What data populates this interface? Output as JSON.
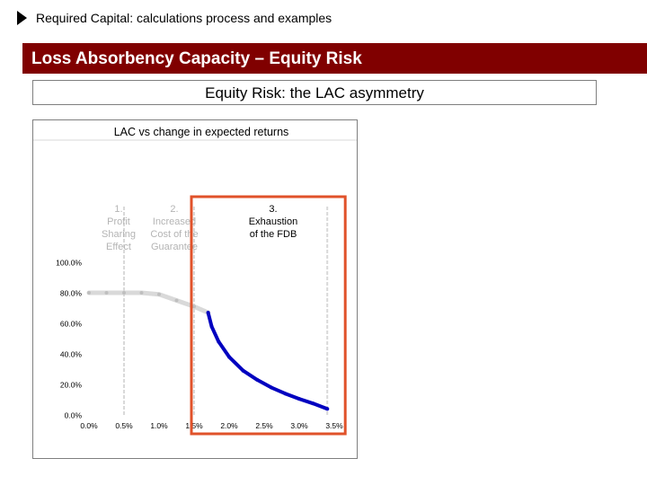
{
  "header": {
    "title": "Required Capital: calculations process and examples"
  },
  "banner": {
    "title": "Loss Absorbency Capacity – Equity Risk"
  },
  "subtitle_box": {
    "title": "Equity Risk: the LAC asymmetry"
  },
  "colors": {
    "banner": "#800000",
    "curve_light": "#d9d9d9",
    "curve_dark": "#0000c0",
    "highlight": "#e0522a",
    "gridline": "#d9d9d9"
  },
  "chart_data": {
    "type": "line",
    "title": "LAC vs change in expected returns",
    "xlabel": "",
    "ylabel": "",
    "x_ticks": [
      "0.0%",
      "0.5%",
      "1.0%",
      "1.5%",
      "2.0%",
      "2.5%",
      "3.0%",
      "3.5%"
    ],
    "y_ticks": [
      "0.0%",
      "20.0%",
      "40.0%",
      "60.0%",
      "80.0%",
      "100.0%"
    ],
    "xlim": [
      0,
      3.5
    ],
    "ylim": [
      0,
      100
    ],
    "zones": [
      {
        "lines": [
          "1.",
          "Profit",
          "Sharing",
          "Effect"
        ],
        "boundary_x": 0.5,
        "faded": true
      },
      {
        "lines": [
          "2.",
          "Increased",
          "Cost of the",
          "Guarantee"
        ],
        "boundary_x": 1.5,
        "faded": true
      },
      {
        "lines": [
          "3.",
          "Exhaustion",
          "of the FDB"
        ],
        "boundary_x": 3.4,
        "faded": false
      }
    ],
    "series": [
      {
        "style": "light",
        "x": [
          0.0,
          0.25,
          0.5,
          0.75,
          1.0,
          1.25,
          1.5,
          1.7
        ],
        "y": [
          80,
          80,
          80,
          80,
          79,
          75,
          71,
          67
        ]
      },
      {
        "style": "dark",
        "x": [
          1.7,
          1.75,
          1.85,
          2.0,
          2.2,
          2.4,
          2.6,
          2.8,
          3.0,
          3.2,
          3.4
        ],
        "y": [
          67,
          58,
          48,
          38,
          29,
          23,
          18,
          14,
          10.5,
          7.5,
          4
        ]
      }
    ]
  }
}
